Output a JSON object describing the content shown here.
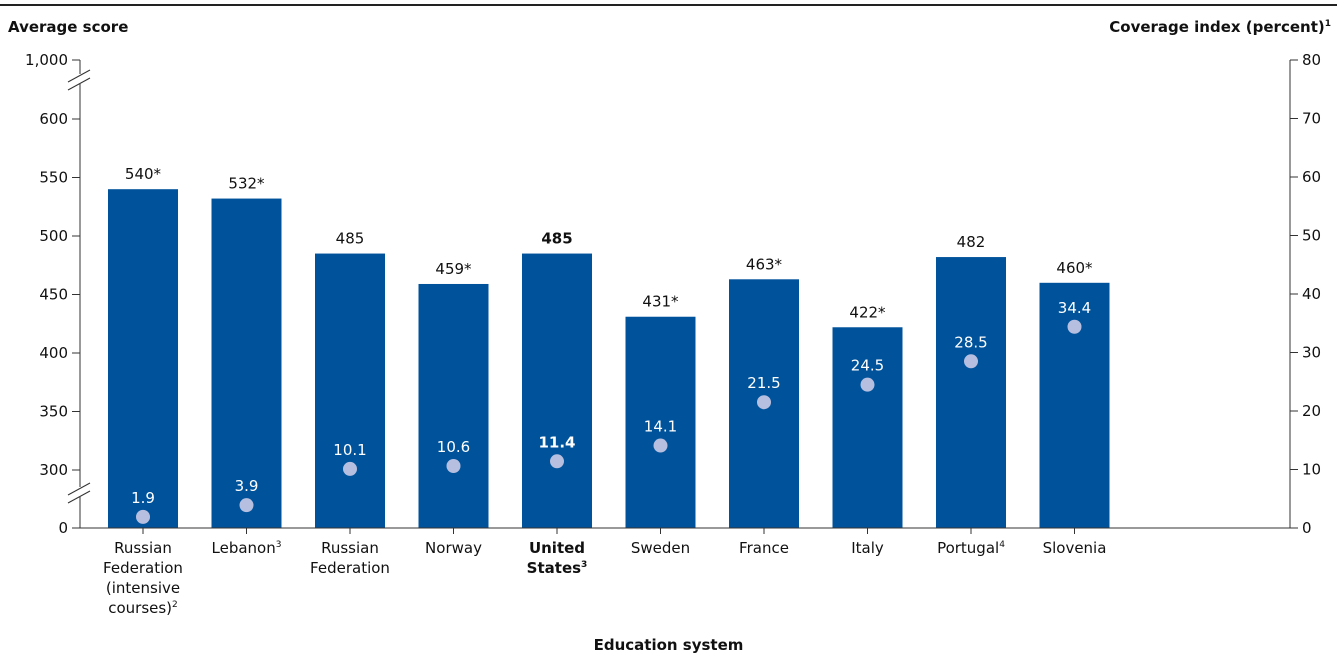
{
  "axes": {
    "left_title": "Average score",
    "right_title": "Coverage index (percent)",
    "right_title_sup": "1",
    "x_title": "Education system"
  },
  "chart_data": {
    "type": "bar",
    "categories": [
      {
        "lines": [
          "Russian",
          "Federation",
          "(intensive",
          "courses)"
        ],
        "sup": "2",
        "bold": false
      },
      {
        "lines": [
          "Lebanon"
        ],
        "sup": "3",
        "bold": false
      },
      {
        "lines": [
          "Russian",
          "Federation"
        ],
        "sup": "",
        "bold": false
      },
      {
        "lines": [
          "Norway"
        ],
        "sup": "",
        "bold": false
      },
      {
        "lines": [
          "United",
          "States"
        ],
        "sup": "3",
        "bold": true
      },
      {
        "lines": [
          "Sweden"
        ],
        "sup": "",
        "bold": false
      },
      {
        "lines": [
          "France"
        ],
        "sup": "",
        "bold": false
      },
      {
        "lines": [
          "Italy"
        ],
        "sup": "",
        "bold": false
      },
      {
        "lines": [
          "Portugal"
        ],
        "sup": "4",
        "bold": false
      },
      {
        "lines": [
          "Slovenia"
        ],
        "sup": "",
        "bold": false
      }
    ],
    "series": [
      {
        "kind": "bar",
        "values": [
          540,
          532,
          485,
          459,
          485,
          431,
          463,
          422,
          482,
          460
        ],
        "labels": [
          "540*",
          "532*",
          "485",
          "459*",
          "485",
          "431*",
          "463*",
          "422*",
          "482",
          "460*"
        ]
      },
      {
        "kind": "dot",
        "values": [
          1.9,
          3.9,
          10.1,
          10.6,
          11.4,
          14.1,
          21.5,
          24.5,
          28.5,
          34.4
        ],
        "labels": [
          "1.9",
          "3.9",
          "10.1",
          "10.6",
          "11.4",
          "14.1",
          "21.5",
          "24.5",
          "28.5",
          "34.4"
        ]
      }
    ],
    "left_axis": {
      "ticks": [
        0,
        300,
        350,
        400,
        450,
        500,
        550,
        600,
        1000
      ],
      "tick_labels": [
        "0",
        "300",
        "350",
        "400",
        "450",
        "500",
        "550",
        "600",
        "1,000"
      ],
      "broken": true
    },
    "right_axis": {
      "ticks": [
        0,
        10,
        20,
        30,
        40,
        50,
        60,
        70,
        80
      ],
      "ylim": [
        0,
        80
      ]
    },
    "colors": {
      "bar": "#00539b",
      "dot": "#b7bfe0",
      "axis": "#333333"
    },
    "highlight_index": 4
  }
}
